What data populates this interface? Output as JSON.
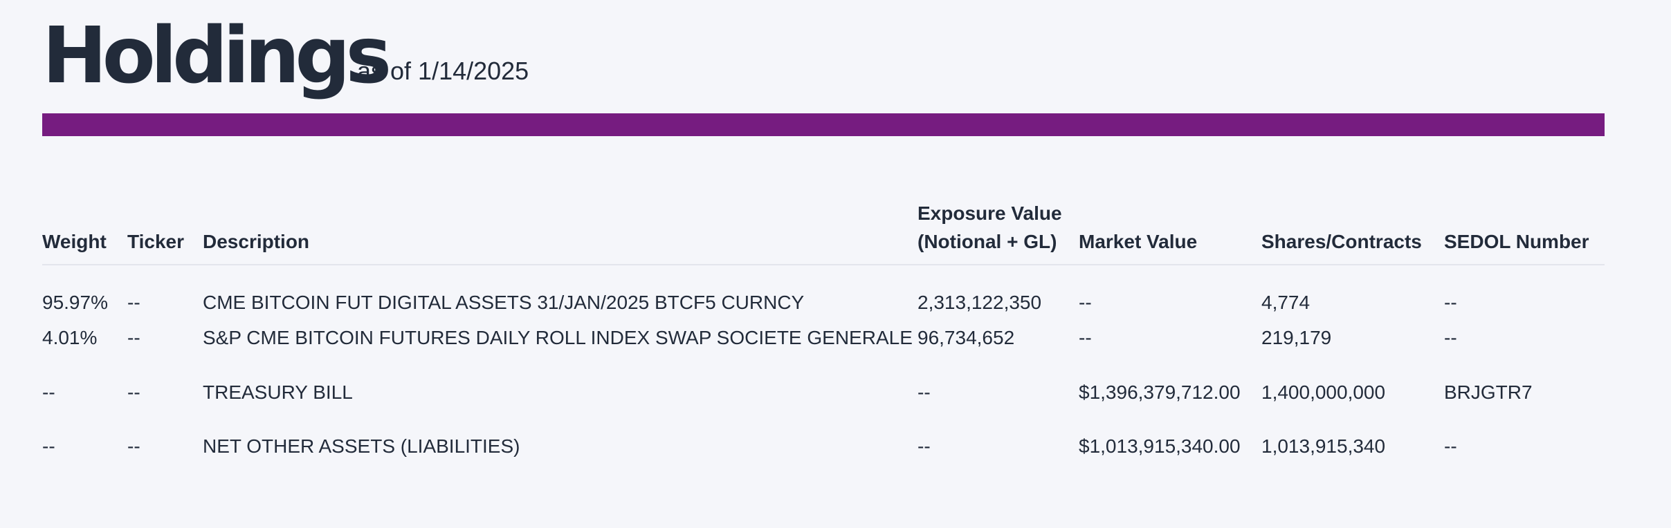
{
  "header": {
    "title": "Holdings",
    "as_of": "as of 1/14/2025"
  },
  "colors": {
    "accent_bar": "#761c80",
    "text": "#222b3a",
    "background": "#f5f6fa"
  },
  "table": {
    "columns": [
      "Weight",
      "Ticker",
      "Description",
      "Exposure Value (Notional + GL)",
      "Market Value",
      "Shares/Contracts",
      "SEDOL Number"
    ],
    "rows": [
      {
        "weight": "95.97%",
        "ticker": "--",
        "description": "CME BITCOIN FUT DIGITAL ASSETS 31/JAN/2025 BTCF5 CURNCY",
        "exposure": "2,313,122,350",
        "market_value": "--",
        "shares": "4,774",
        "sedol": "--"
      },
      {
        "weight": "4.01%",
        "ticker": "--",
        "description": "S&P CME BITCOIN FUTURES DAILY ROLL INDEX SWAP SOCIETE GENERALE",
        "exposure": "96,734,652",
        "market_value": "--",
        "shares": "219,179",
        "sedol": "--"
      },
      {
        "weight": "--",
        "ticker": "--",
        "description": "TREASURY BILL",
        "exposure": "--",
        "market_value": "$1,396,379,712.00",
        "shares": "1,400,000,000",
        "sedol": "BRJGTR7"
      },
      {
        "weight": "--",
        "ticker": "--",
        "description": "NET OTHER ASSETS (LIABILITIES)",
        "exposure": "--",
        "market_value": "$1,013,915,340.00",
        "shares": "1,013,915,340",
        "sedol": "--"
      }
    ]
  }
}
